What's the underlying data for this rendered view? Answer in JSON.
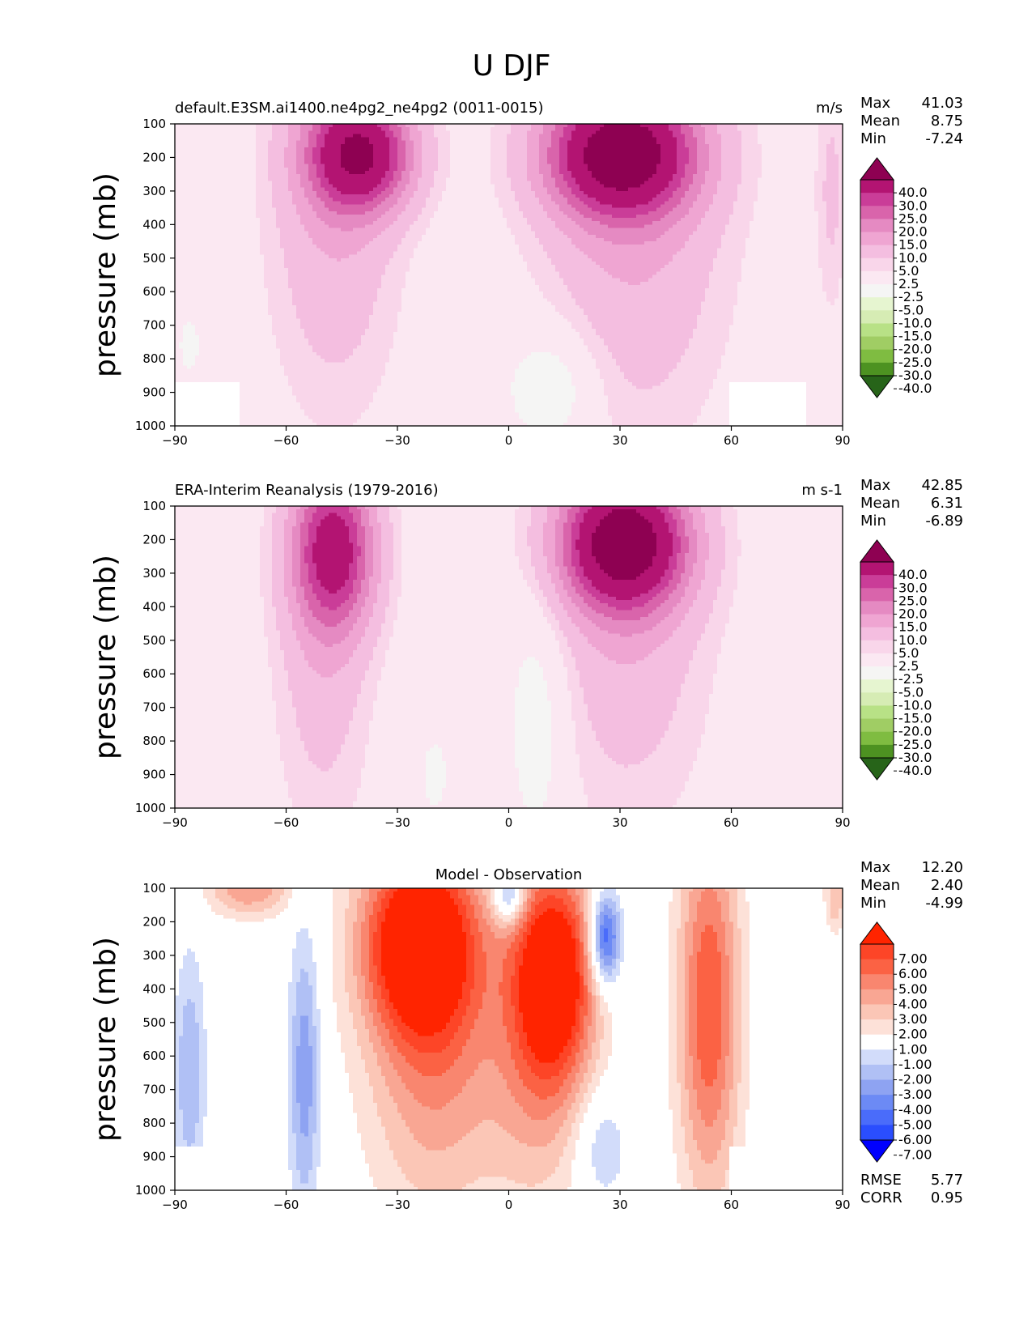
{
  "figure_title": "U DJF",
  "colors": {
    "test": [
      "#276419",
      "#4d9221",
      "#7fbc41",
      "#a0cd64",
      "#b8e186",
      "#d6ecb4",
      "#e6f5d0",
      "#f5f5f4",
      "#fbe8f2",
      "#f9d6ea",
      "#f4bee0",
      "#efa5d2",
      "#e58ac2",
      "#d964ab",
      "#ca3d98",
      "#b31472",
      "#8e0152"
    ],
    "diff": [
      "#0000fe",
      "#2a4efe",
      "#4a6cfa",
      "#6c8af5",
      "#8ea3f2",
      "#b0c0f5",
      "#d2dcfa",
      "#ffffff",
      "#fde1d8",
      "#fbc6b6",
      "#f9a693",
      "#f9866f",
      "#fb6244",
      "#fd4527",
      "#ff2400"
    ]
  },
  "chart_data": [
    {
      "type": "heatmap",
      "title": "default.E3SM.ai1400.ne4pg2_ne4pg2 (0011-0015)",
      "units": "m/s",
      "ylabel": "pressure (mb)",
      "xlim": [
        -90,
        90
      ],
      "ylim": [
        1000,
        100
      ],
      "xticks": [
        "−90",
        "−60",
        "−30",
        "0",
        "30",
        "60",
        "90"
      ],
      "yticks": [
        "100",
        "200",
        "300",
        "400",
        "500",
        "600",
        "700",
        "800",
        "900",
        "1000"
      ],
      "stats": {
        "max_label": "Max",
        "max": "41.03",
        "mean_label": "Mean",
        "mean": "8.75",
        "min_label": "Min",
        "min": "-7.24"
      },
      "levels": [
        -40,
        -30,
        -25,
        -20,
        -15,
        -10,
        -5,
        -2.5,
        2.5,
        5,
        10,
        15,
        20,
        25,
        30,
        40
      ],
      "colorbar_labels": [
        "40.0",
        "30.0",
        "25.0",
        "20.0",
        "15.0",
        "10.0",
        "5.0",
        "2.5",
        "-2.5",
        "-5.0",
        "-10.0",
        "-15.0",
        "-20.0",
        "-25.0",
        "-30.0",
        "-40.0"
      ],
      "features": [
        {
          "lat": -40,
          "p": 190,
          "amp": 36,
          "sx": 10,
          "sp": 120
        },
        {
          "lat": -47,
          "p": 320,
          "amp": 10,
          "sx": 12,
          "sp": 420
        },
        {
          "lat": 30,
          "p": 190,
          "amp": 41,
          "sx": 14,
          "sp": 130
        },
        {
          "lat": 34,
          "p": 340,
          "amp": 11,
          "sx": 17,
          "sp": 450
        },
        {
          "lat": 12,
          "p": 880,
          "amp": -7,
          "sx": 9,
          "sp": 130
        },
        {
          "lat": -86,
          "p": 760,
          "amp": -3,
          "sx": 4,
          "sp": 120
        },
        {
          "lat": 87,
          "p": 300,
          "amp": 6,
          "sx": 3,
          "sp": 250
        }
      ],
      "missing": [
        {
          "lat": [
            -90,
            -73
          ],
          "p": [
            870,
            1000
          ]
        },
        {
          "lat": [
            60,
            80
          ],
          "p": [
            870,
            1000
          ]
        }
      ]
    },
    {
      "type": "heatmap",
      "title": "ERA-Interim Reanalysis (1979-2016)",
      "units": "m s-1",
      "ylabel": "pressure (mb)",
      "xlim": [
        -90,
        90
      ],
      "ylim": [
        1000,
        100
      ],
      "xticks": [
        "−90",
        "−60",
        "−30",
        "0",
        "30",
        "60",
        "90"
      ],
      "yticks": [
        "100",
        "200",
        "300",
        "400",
        "500",
        "600",
        "700",
        "800",
        "900",
        "1000"
      ],
      "stats": {
        "max_label": "Max",
        "max": "42.85",
        "mean_label": "Mean",
        "mean": "6.31",
        "min_label": "Min",
        "min": "-6.89"
      },
      "levels": [
        -40,
        -30,
        -25,
        -20,
        -15,
        -10,
        -5,
        -2.5,
        2.5,
        5,
        10,
        15,
        20,
        25,
        30,
        40
      ],
      "colorbar_labels": [
        "40.0",
        "30.0",
        "25.0",
        "20.0",
        "15.0",
        "10.0",
        "5.0",
        "2.5",
        "-2.5",
        "-5.0",
        "-10.0",
        "-15.0",
        "-20.0",
        "-25.0",
        "-30.0",
        "-40.0"
      ],
      "features": [
        {
          "lat": -47,
          "p": 230,
          "amp": 30,
          "sx": 8,
          "sp": 170
        },
        {
          "lat": -50,
          "p": 480,
          "amp": 8,
          "sx": 9,
          "sp": 420
        },
        {
          "lat": 31,
          "p": 210,
          "amp": 43,
          "sx": 12,
          "sp": 140
        },
        {
          "lat": 32,
          "p": 420,
          "amp": 9,
          "sx": 15,
          "sp": 420
        },
        {
          "lat": 8,
          "p": 720,
          "amp": -6,
          "sx": 6,
          "sp": 280
        },
        {
          "lat": -20,
          "p": 900,
          "amp": -3,
          "sx": 5,
          "sp": 150
        },
        {
          "lat": -74,
          "p": 900,
          "amp": -2.5,
          "sx": 2,
          "sp": 90
        }
      ],
      "missing": []
    },
    {
      "type": "heatmap",
      "title": "Model - Observation",
      "units": "",
      "ylabel": "pressure (mb)",
      "xlim": [
        -90,
        90
      ],
      "ylim": [
        1000,
        100
      ],
      "xticks": [
        "−90",
        "−60",
        "−30",
        "0",
        "30",
        "60",
        "90"
      ],
      "yticks": [
        "100",
        "200",
        "300",
        "400",
        "500",
        "600",
        "700",
        "800",
        "900",
        "1000"
      ],
      "stats": {
        "max_label": "Max",
        "max": "12.20",
        "mean_label": "Mean",
        "mean": "2.40",
        "min_label": "Min",
        "min": "-4.99"
      },
      "levels": [
        -7,
        -6,
        -5,
        -4,
        -3,
        -2,
        -1,
        1,
        2,
        3,
        4,
        5,
        6,
        7
      ],
      "colorbar_labels": [
        "7.00",
        "6.00",
        "5.00",
        "4.00",
        "3.00",
        "2.00",
        "1.00",
        "-1.00",
        "-2.00",
        "-3.00",
        "-4.00",
        "-5.00",
        "-6.00",
        "-7.00"
      ],
      "rmse_label": "RMSE",
      "rmse": "5.77",
      "corr_label": "CORR",
      "corr": "0.95",
      "features": [
        {
          "lat": -24,
          "p": 250,
          "amp": 9,
          "sx": 11,
          "sp": 200
        },
        {
          "lat": -20,
          "p": 600,
          "amp": 4,
          "sx": 13,
          "sp": 350
        },
        {
          "lat": 12,
          "p": 350,
          "amp": 9,
          "sx": 8,
          "sp": 230
        },
        {
          "lat": 8,
          "p": 700,
          "amp": 2.5,
          "sx": 10,
          "sp": 300
        },
        {
          "lat": 54,
          "p": 450,
          "amp": 6,
          "sx": 6,
          "sp": 400
        },
        {
          "lat": -55,
          "p": 650,
          "amp": -3.8,
          "sx": 3,
          "sp": 300
        },
        {
          "lat": -86,
          "p": 650,
          "amp": -3,
          "sx": 3,
          "sp": 250
        },
        {
          "lat": 25,
          "p": 870,
          "amp": -2.2,
          "sx": 5,
          "sp": 120
        },
        {
          "lat": 0,
          "p": 120,
          "amp": -5,
          "sx": 3,
          "sp": 60
        },
        {
          "lat": 26,
          "p": 250,
          "amp": -7,
          "sx": 3,
          "sp": 100
        },
        {
          "lat": -70,
          "p": 100,
          "amp": 4,
          "sx": 8,
          "sp": 60
        },
        {
          "lat": 88,
          "p": 120,
          "amp": 3,
          "sx": 2,
          "sp": 80
        }
      ],
      "missing": [
        {
          "lat": [
            -90,
            -73
          ],
          "p": [
            870,
            1000
          ]
        },
        {
          "lat": [
            60,
            80
          ],
          "p": [
            870,
            1000
          ]
        }
      ]
    }
  ]
}
